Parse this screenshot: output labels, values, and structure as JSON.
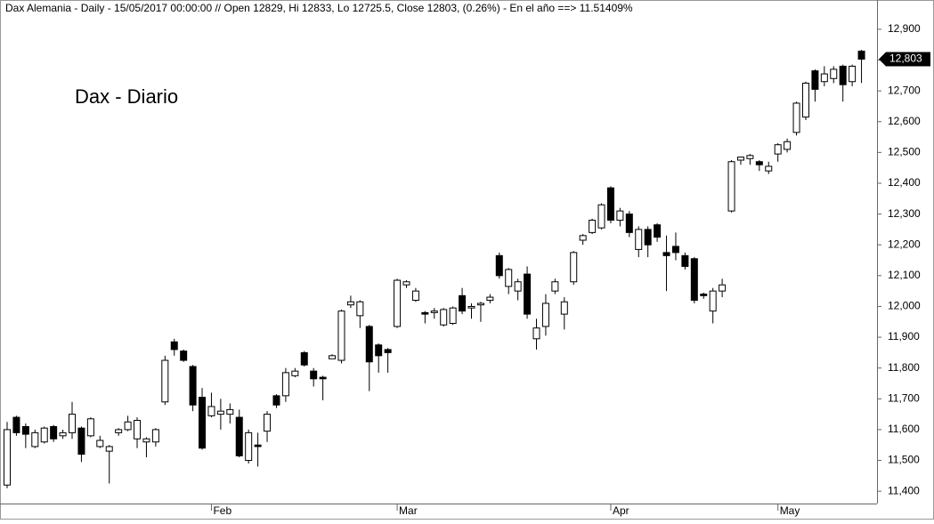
{
  "chart_data": {
    "type": "candlestick",
    "title": "Dax Alemania - Daily - 15/05/2017 00:00:00 // Open 12829, Hi 12833, Lo 12725.5, Close 12803, (0.26%) - En el año ==> 11.51409%",
    "annotation": "Dax - Diario",
    "categories": [
      null,
      null,
      null,
      null,
      null,
      null,
      null,
      null,
      null,
      null,
      null,
      null,
      null,
      null,
      null,
      null,
      null,
      null,
      null,
      null,
      null,
      null,
      "Feb",
      null,
      null,
      null,
      null,
      null,
      null,
      null,
      null,
      null,
      null,
      null,
      null,
      null,
      null,
      null,
      null,
      null,
      null,
      null,
      "Mar",
      null,
      null,
      null,
      null,
      null,
      null,
      null,
      null,
      null,
      null,
      null,
      null,
      null,
      null,
      null,
      null,
      null,
      null,
      null,
      null,
      null,
      null,
      "Apr",
      null,
      null,
      null,
      null,
      null,
      null,
      null,
      null,
      null,
      null,
      null,
      null,
      null,
      null,
      null,
      null,
      null,
      "May",
      null,
      null,
      null,
      null,
      null,
      null,
      null,
      null,
      null
    ],
    "open": [
      11420,
      11640,
      11610,
      11545,
      11560,
      11610,
      11580,
      11590,
      11605,
      11580,
      11545,
      11530,
      11590,
      11600,
      11570,
      11560,
      11560,
      11690,
      11885,
      11855,
      11805,
      11705,
      11645,
      11650,
      11650,
      11640,
      11500,
      11550,
      11595,
      11710,
      11710,
      11775,
      11850,
      11790,
      11770,
      11830,
      11825,
      12005,
      11970,
      11935,
      11875,
      11860,
      11935,
      12070,
      12020,
      11980,
      11980,
      11940,
      11945,
      12035,
      11995,
      12005,
      12020,
      12165,
      12065,
      12050,
      12105,
      11895,
      11935,
      12050,
      11975,
      12080,
      12215,
      12240,
      12255,
      12385,
      12280,
      12300,
      12185,
      12250,
      12265,
      12175,
      12195,
      12165,
      12155,
      12040,
      11985,
      12050,
      12310,
      12475,
      12480,
      12470,
      12440,
      12495,
      12510,
      12565,
      12615,
      12765,
      12730,
      12740,
      12780,
      12730,
      12829
    ],
    "high": [
      11625,
      11645,
      11620,
      11600,
      11610,
      11615,
      11600,
      11690,
      11610,
      11640,
      11580,
      11550,
      11605,
      11645,
      11640,
      11575,
      11605,
      11840,
      11895,
      11860,
      11810,
      11735,
      11720,
      11700,
      11685,
      11665,
      11600,
      11590,
      11660,
      11715,
      11800,
      11800,
      11855,
      11800,
      11775,
      11845,
      11990,
      12035,
      12020,
      11940,
      11880,
      11865,
      12090,
      12085,
      12060,
      11985,
      11995,
      11995,
      12000,
      12060,
      12010,
      12015,
      12040,
      12175,
      12125,
      12090,
      12130,
      11960,
      12040,
      12090,
      12030,
      12180,
      12235,
      12285,
      12335,
      12390,
      12320,
      12310,
      12260,
      12260,
      12270,
      12230,
      12240,
      12175,
      12160,
      12045,
      12060,
      12090,
      12475,
      12485,
      12495,
      12475,
      12470,
      12530,
      12545,
      12665,
      12730,
      12770,
      12780,
      12780,
      12785,
      12785,
      12833
    ],
    "low": [
      11410,
      11580,
      11540,
      11540,
      11555,
      11560,
      11570,
      11570,
      11495,
      11575,
      11540,
      11425,
      11580,
      11595,
      11540,
      11510,
      11545,
      11680,
      11840,
      11820,
      11660,
      11535,
      11640,
      11600,
      11620,
      11510,
      11490,
      11480,
      11560,
      11670,
      11690,
      11770,
      11805,
      11740,
      11695,
      11830,
      11815,
      11995,
      11930,
      11725,
      11785,
      11785,
      11930,
      12060,
      12015,
      11945,
      11960,
      11935,
      11940,
      11975,
      11960,
      11950,
      12010,
      12090,
      12040,
      12020,
      11960,
      11860,
      11905,
      12040,
      11925,
      12070,
      12200,
      12235,
      12250,
      12270,
      12260,
      12225,
      12160,
      12160,
      12210,
      12050,
      12150,
      12120,
      12010,
      12025,
      11945,
      12030,
      12305,
      12460,
      12460,
      12440,
      12430,
      12470,
      12500,
      12555,
      12605,
      12665,
      12715,
      12725,
      12665,
      12715,
      12725.5
    ],
    "close": [
      11600,
      11590,
      11585,
      11590,
      11605,
      11570,
      11590,
      11650,
      11520,
      11635,
      11565,
      11545,
      11600,
      11625,
      11630,
      11570,
      11600,
      11825,
      11860,
      11825,
      11680,
      11540,
      11675,
      11660,
      11665,
      11515,
      11590,
      11545,
      11650,
      11680,
      11785,
      11790,
      11810,
      11765,
      11765,
      11840,
      11985,
      12015,
      12015,
      11820,
      11840,
      11850,
      12085,
      12080,
      12050,
      11975,
      11985,
      11990,
      11995,
      11985,
      12000,
      12010,
      12030,
      12100,
      12120,
      12080,
      11975,
      11930,
      12010,
      12080,
      12015,
      12175,
      12230,
      12280,
      12330,
      12280,
      12310,
      12240,
      12250,
      12200,
      12225,
      12165,
      12175,
      12130,
      12020,
      12035,
      12050,
      12070,
      12470,
      12485,
      12490,
      12460,
      12455,
      12525,
      12535,
      12660,
      12725,
      12705,
      12755,
      12770,
      12720,
      12780,
      12803
    ],
    "up_color": "#ffffff",
    "down_color": "#000000",
    "last_price": {
      "value": 12803,
      "label": "12,803"
    },
    "ylim": [
      11360,
      12995
    ],
    "yticks": [
      {
        "value": 11400,
        "label": "11,400"
      },
      {
        "value": 11500,
        "label": "11,500"
      },
      {
        "value": 11600,
        "label": "11,600"
      },
      {
        "value": 11700,
        "label": "11,700"
      },
      {
        "value": 11800,
        "label": "11,800"
      },
      {
        "value": 11900,
        "label": "11,900"
      },
      {
        "value": 12000,
        "label": "12,000"
      },
      {
        "value": 12100,
        "label": "12,100"
      },
      {
        "value": 12200,
        "label": "12,200"
      },
      {
        "value": 12300,
        "label": "12,300"
      },
      {
        "value": 12400,
        "label": "12,400"
      },
      {
        "value": 12500,
        "label": "12,500"
      },
      {
        "value": 12600,
        "label": "12,600"
      },
      {
        "value": 12700,
        "label": "12,700"
      },
      {
        "value": 12800,
        "label": "12,800"
      },
      {
        "value": 12900,
        "label": "12,900"
      }
    ]
  }
}
